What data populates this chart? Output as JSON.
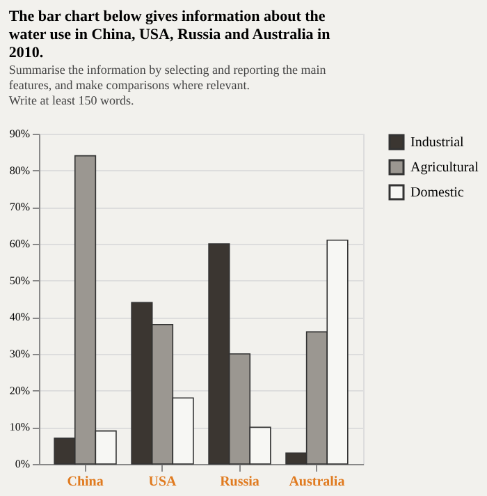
{
  "chart_data": {
    "type": "bar",
    "title": "The bar chart below gives information about the water use in China, USA, Russia and Australia in 2010.",
    "subtitle": "Summarise the information by selecting and reporting the main features, and make comparisons where relevant.",
    "annotations": [
      "Write at least 150 words."
    ],
    "categories": [
      "China",
      "USA",
      "Russia",
      "Australia"
    ],
    "series": [
      {
        "name": "Industrial",
        "color": "#3b3631",
        "values": [
          7,
          44,
          60,
          3
        ]
      },
      {
        "name": "Agricultural",
        "color": "#9b9791",
        "values": [
          84,
          38,
          30,
          36
        ]
      },
      {
        "name": "Domestic",
        "color": "#f7f7f4",
        "values": [
          9,
          18,
          10,
          61
        ]
      }
    ],
    "ylim": [
      0,
      90
    ],
    "yticks": [
      {
        "value": 0,
        "label": "0%"
      },
      {
        "value": 10,
        "label": "10%"
      },
      {
        "value": 20,
        "label": "20%"
      },
      {
        "value": 30,
        "label": "30%"
      },
      {
        "value": 40,
        "label": "40%"
      },
      {
        "value": 50,
        "label": "50%"
      },
      {
        "value": 60,
        "label": "60%"
      },
      {
        "value": 70,
        "label": "70%"
      },
      {
        "value": 80,
        "label": "80%"
      },
      {
        "value": 90,
        "label": "90%"
      }
    ],
    "grid": "y",
    "legend": "right"
  }
}
